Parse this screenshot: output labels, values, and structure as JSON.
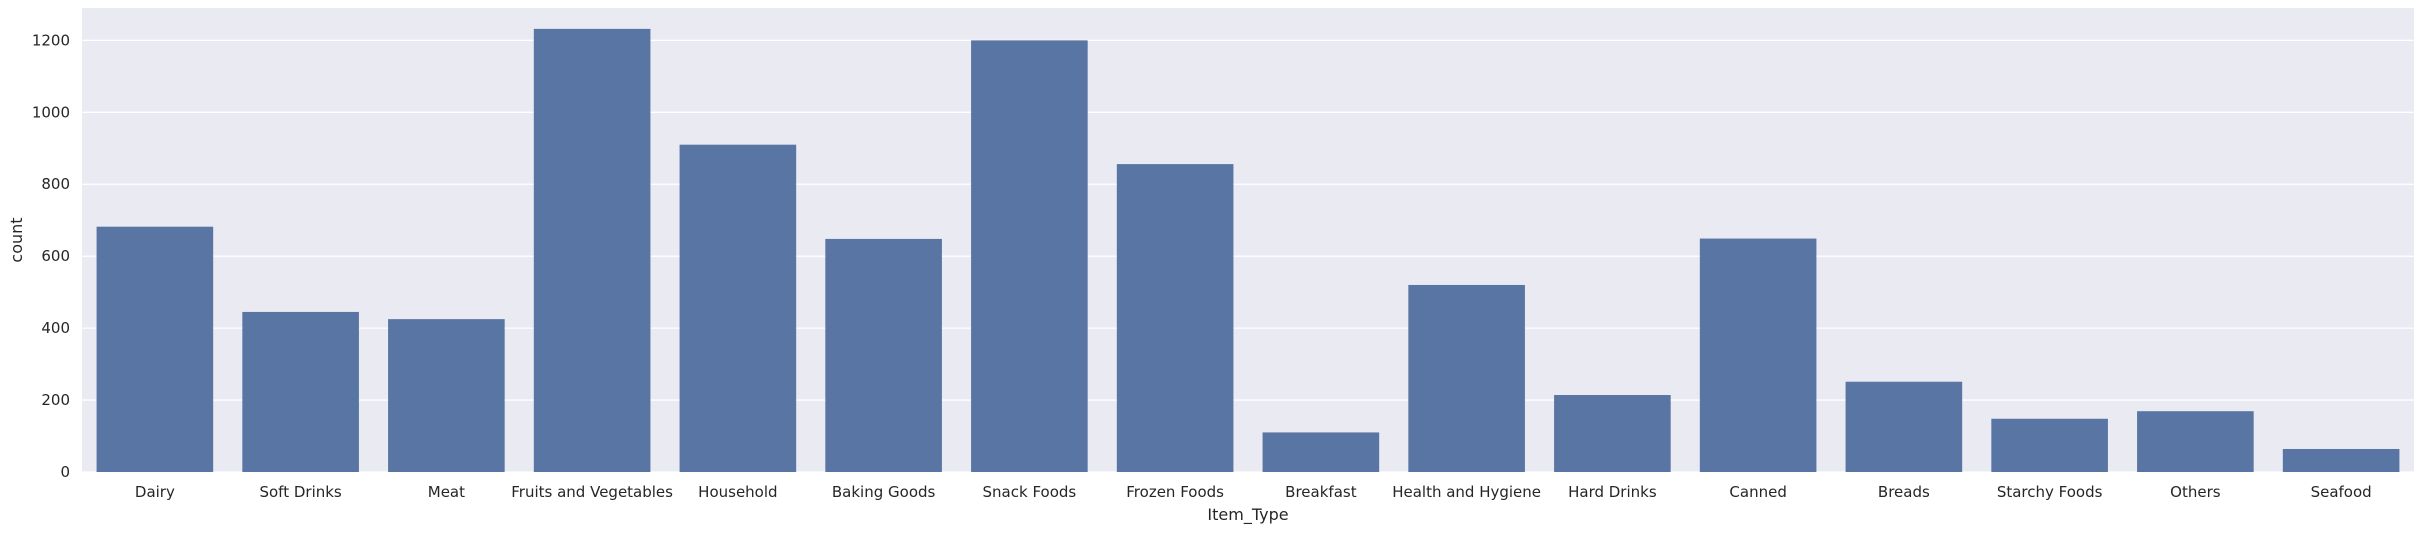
{
  "chart_data": {
    "type": "bar",
    "title": "",
    "xlabel": "Item_Type",
    "ylabel": "count",
    "categories": [
      "Dairy",
      "Soft Drinks",
      "Meat",
      "Fruits and Vegetables",
      "Household",
      "Baking Goods",
      "Snack Foods",
      "Frozen Foods",
      "Breakfast",
      "Health and Hygiene",
      "Hard Drinks",
      "Canned",
      "Breads",
      "Starchy Foods",
      "Others",
      "Seafood"
    ],
    "values": [
      682,
      445,
      425,
      1232,
      910,
      648,
      1200,
      856,
      110,
      520,
      214,
      649,
      251,
      148,
      169,
      64
    ],
    "ylim": [
      0,
      1290
    ],
    "yticks": [
      0,
      200,
      400,
      600,
      800,
      1000,
      1200
    ],
    "grid": true,
    "legend": "none",
    "colors": {
      "bar": "#5975a4",
      "plot_background": "#eaeaf2",
      "grid": "#ffffff",
      "text": "#262626"
    }
  }
}
